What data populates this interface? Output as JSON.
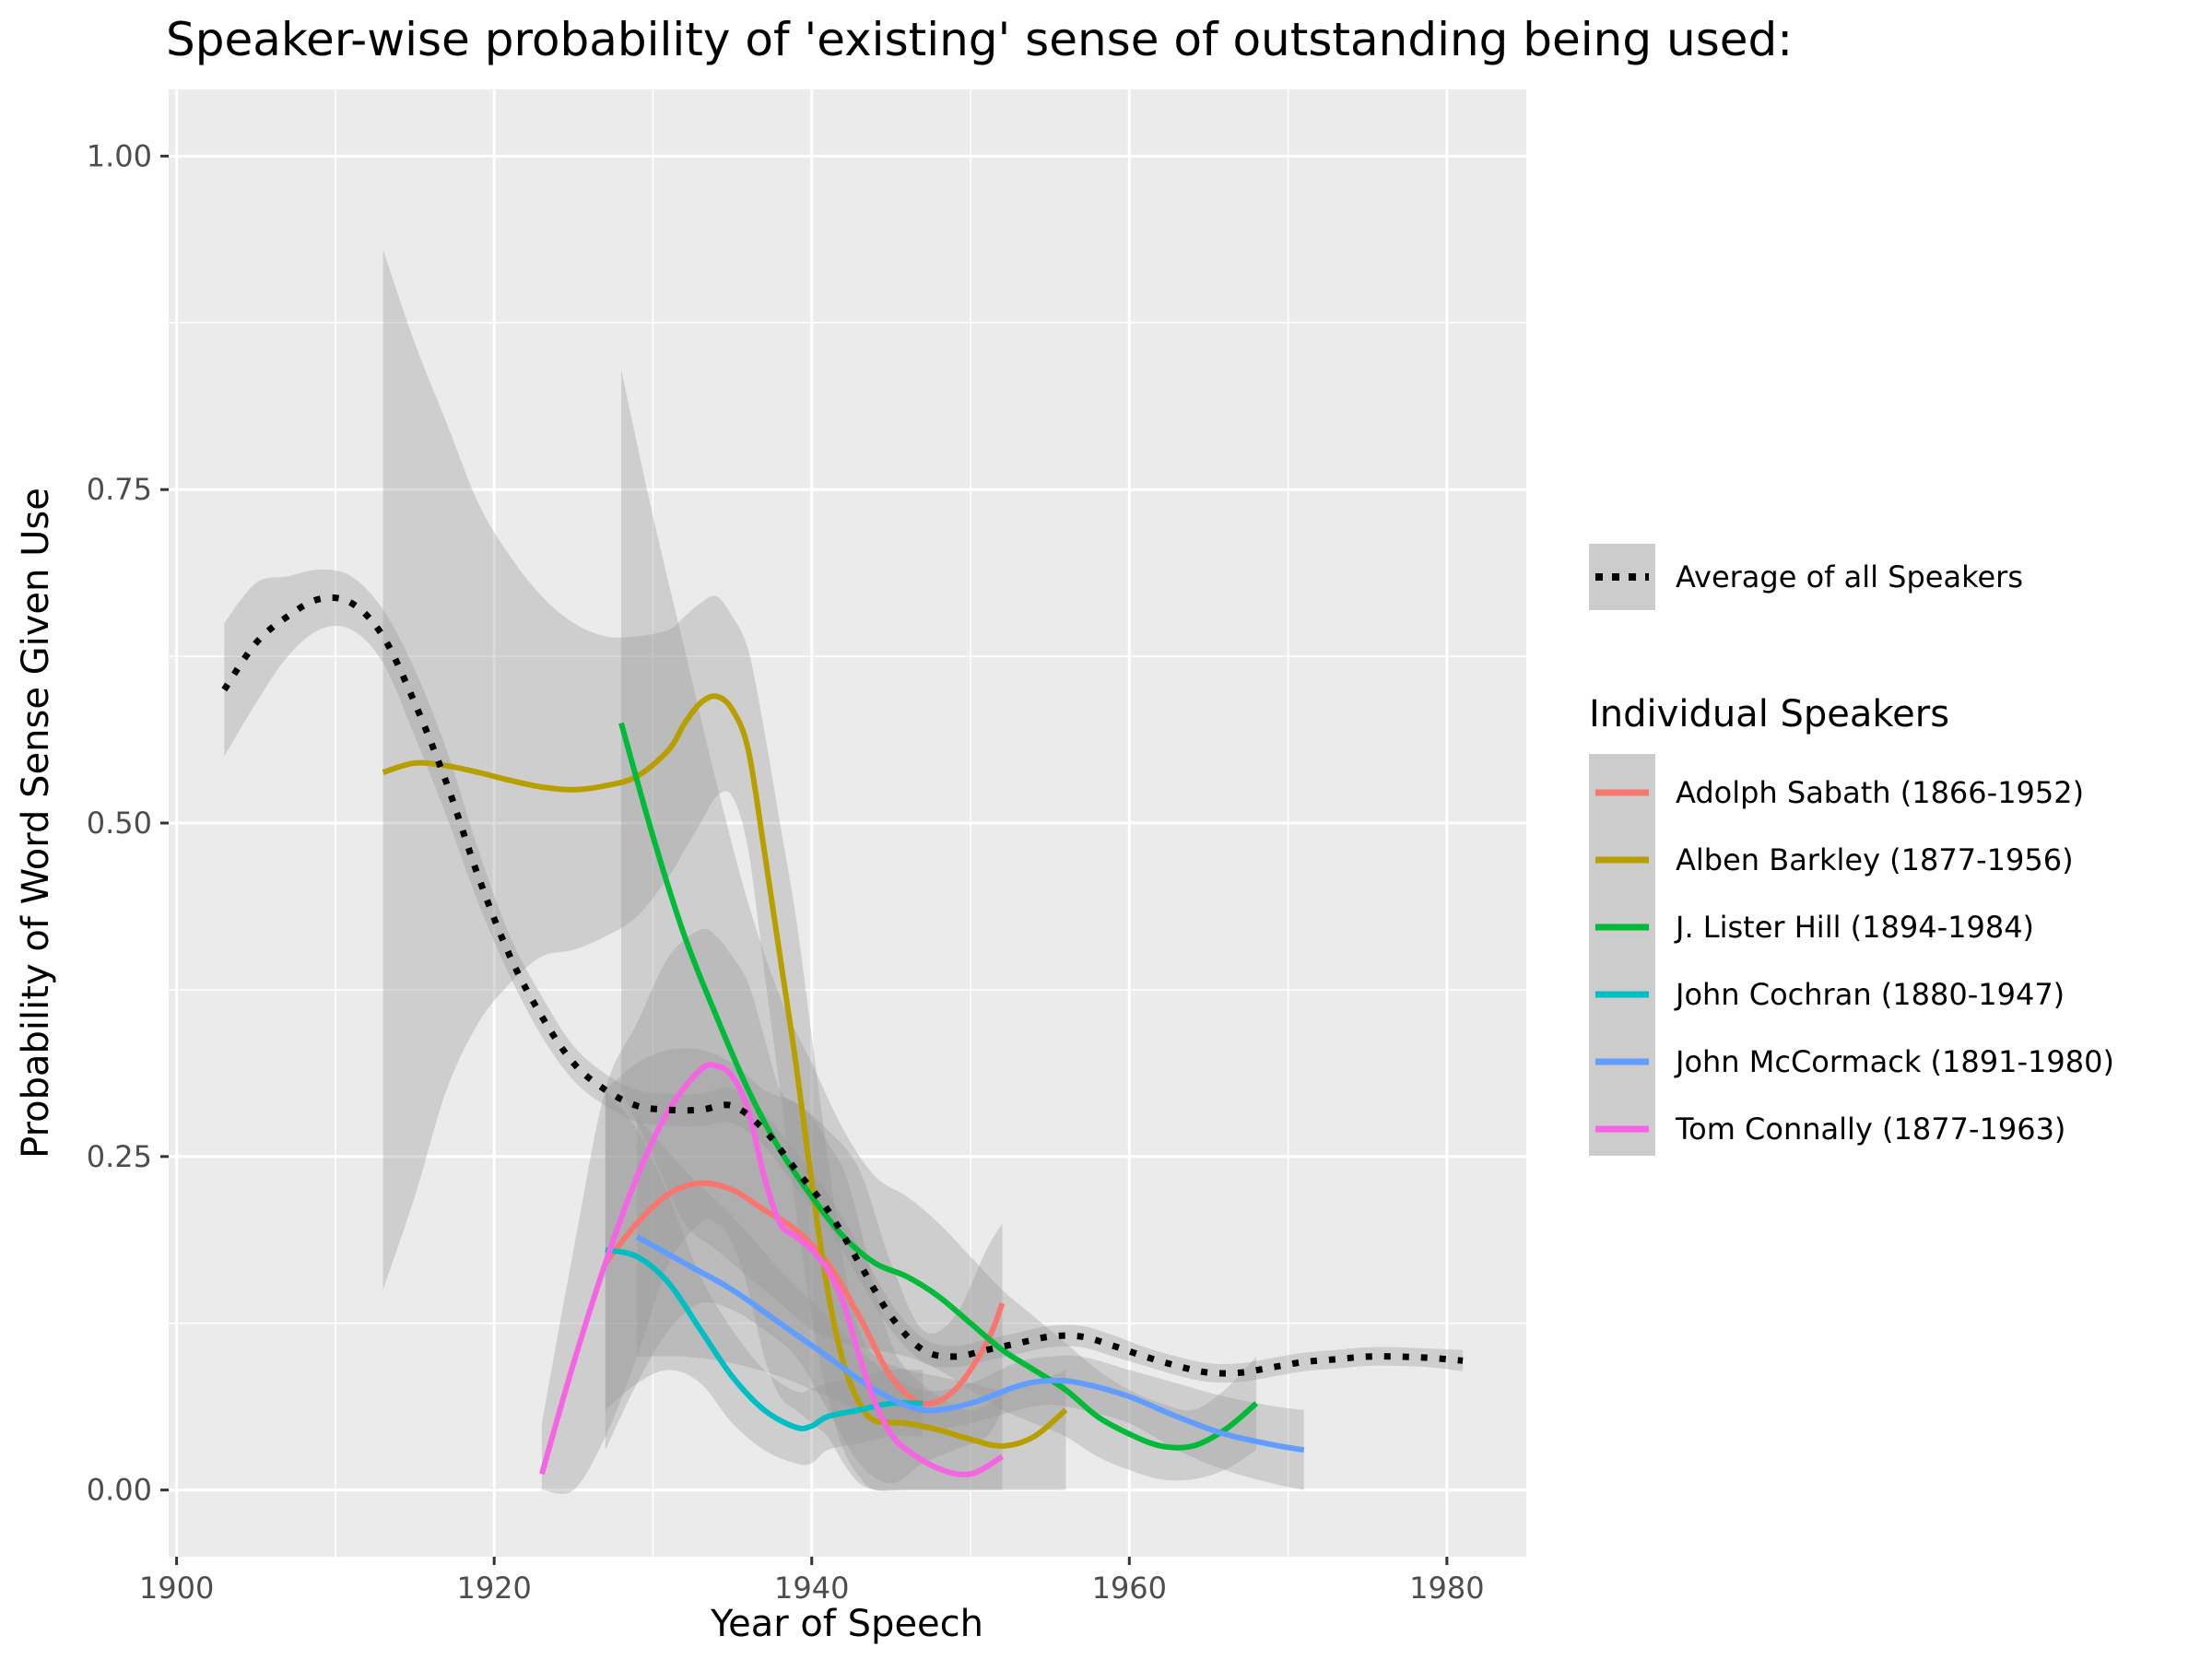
{
  "chart_data": {
    "type": "line",
    "title": "Speaker-wise probability of 'existing' sense of outstanding being used:",
    "xlabel": "Year of Speech",
    "ylabel": "Probability of Word Sense Given Use",
    "xlim": [
      1899.5,
      1985
    ],
    "ylim": [
      -0.05,
      1.05
    ],
    "x_ticks": [
      1900,
      1920,
      1940,
      1960,
      1980
    ],
    "x_tick_labels": [
      "1900",
      "1920",
      "1940",
      "1960",
      "1980"
    ],
    "y_ticks": [
      0,
      0.25,
      0.5,
      0.75,
      1.0
    ],
    "y_tick_labels": [
      "0.00",
      "0.25",
      "0.50",
      "0.75",
      "1.00"
    ],
    "grid": true,
    "legend_position": "right",
    "average": {
      "name": "Average of all Speakers",
      "color": "#000000",
      "x": [
        1903,
        1905,
        1907,
        1909,
        1911,
        1913,
        1915,
        1917,
        1919,
        1921,
        1923,
        1925,
        1927,
        1929,
        1931,
        1933,
        1935,
        1937,
        1939,
        1941,
        1943,
        1945,
        1947,
        1949,
        1951,
        1953,
        1955,
        1957,
        1959,
        1961,
        1963,
        1965,
        1967,
        1969,
        1971,
        1973,
        1975,
        1977,
        1979,
        1981
      ],
      "y": [
        0.6,
        0.635,
        0.655,
        0.668,
        0.665,
        0.64,
        0.59,
        0.53,
        0.46,
        0.4,
        0.355,
        0.32,
        0.3,
        0.288,
        0.285,
        0.285,
        0.288,
        0.27,
        0.24,
        0.21,
        0.17,
        0.13,
        0.105,
        0.1,
        0.105,
        0.11,
        0.115,
        0.115,
        0.108,
        0.1,
        0.093,
        0.088,
        0.088,
        0.092,
        0.096,
        0.098,
        0.1,
        0.1,
        0.099,
        0.097
      ],
      "band_low": [
        0.55,
        0.59,
        0.625,
        0.645,
        0.645,
        0.62,
        0.565,
        0.505,
        0.44,
        0.385,
        0.34,
        0.307,
        0.288,
        0.276,
        0.273,
        0.273,
        0.275,
        0.258,
        0.227,
        0.198,
        0.158,
        0.12,
        0.096,
        0.092,
        0.097,
        0.102,
        0.107,
        0.107,
        0.1,
        0.093,
        0.086,
        0.081,
        0.081,
        0.085,
        0.089,
        0.091,
        0.093,
        0.093,
        0.092,
        0.089
      ],
      "band_high": [
        0.65,
        0.68,
        0.685,
        0.69,
        0.685,
        0.66,
        0.615,
        0.555,
        0.48,
        0.415,
        0.37,
        0.333,
        0.312,
        0.3,
        0.297,
        0.297,
        0.301,
        0.282,
        0.253,
        0.222,
        0.182,
        0.14,
        0.114,
        0.108,
        0.113,
        0.118,
        0.123,
        0.123,
        0.116,
        0.107,
        0.1,
        0.095,
        0.095,
        0.099,
        0.103,
        0.105,
        0.107,
        0.107,
        0.106,
        0.105
      ]
    },
    "legend_title": "Individual Speakers",
    "series": [
      {
        "name": "Adolph Sabath (1866-1952)",
        "color": "#F8766D",
        "x": [
          1927,
          1929,
          1931,
          1933,
          1935,
          1937,
          1939,
          1941,
          1943,
          1945,
          1947,
          1949,
          1951,
          1952
        ],
        "y": [
          0.17,
          0.2,
          0.222,
          0.23,
          0.225,
          0.21,
          0.195,
          0.17,
          0.13,
          0.085,
          0.065,
          0.075,
          0.11,
          0.14
        ],
        "band_low": [
          0.03,
          0.08,
          0.12,
          0.14,
          0.135,
          0.12,
          0.1,
          0.06,
          0.02,
          0.005,
          0.02,
          0.03,
          0.04,
          0.06
        ],
        "band_high": [
          0.3,
          0.32,
          0.33,
          0.33,
          0.32,
          0.3,
          0.29,
          0.27,
          0.24,
          0.17,
          0.12,
          0.13,
          0.18,
          0.2
        ]
      },
      {
        "name": "Alben Barkley (1877-1956)",
        "color": "#B79F00",
        "x": [
          1913,
          1915,
          1917,
          1919,
          1921,
          1923,
          1925,
          1927,
          1929,
          1931,
          1932,
          1933,
          1934,
          1935,
          1936,
          1937,
          1938,
          1939,
          1940,
          1941,
          1942,
          1943,
          1944,
          1946,
          1948,
          1950,
          1952,
          1954,
          1956
        ],
        "y": [
          0.538,
          0.545,
          0.543,
          0.538,
          0.532,
          0.527,
          0.525,
          0.528,
          0.535,
          0.555,
          0.575,
          0.59,
          0.595,
          0.585,
          0.555,
          0.48,
          0.4,
          0.32,
          0.23,
          0.15,
          0.095,
          0.065,
          0.052,
          0.05,
          0.045,
          0.038,
          0.033,
          0.04,
          0.06
        ],
        "band_low": [
          0.15,
          0.22,
          0.3,
          0.35,
          0.38,
          0.4,
          0.405,
          0.415,
          0.43,
          0.46,
          0.48,
          0.5,
          0.52,
          0.52,
          0.48,
          0.39,
          0.3,
          0.21,
          0.13,
          0.07,
          0.03,
          0.01,
          0.0,
          0.0,
          0.0,
          0.0,
          0.0,
          0.0,
          0.0
        ],
        "band_high": [
          0.93,
          0.86,
          0.8,
          0.74,
          0.7,
          0.67,
          0.65,
          0.64,
          0.64,
          0.645,
          0.655,
          0.665,
          0.67,
          0.655,
          0.63,
          0.57,
          0.5,
          0.43,
          0.34,
          0.25,
          0.17,
          0.12,
          0.1,
          0.09,
          0.085,
          0.08,
          0.075,
          0.08,
          0.09
        ]
      },
      {
        "name": "J. Lister Hill (1894-1984)",
        "color": "#00BA38",
        "x": [
          1928,
          1930,
          1932,
          1934,
          1936,
          1938,
          1940,
          1942,
          1944,
          1946,
          1948,
          1950,
          1952,
          1954,
          1956,
          1958,
          1960,
          1962,
          1964,
          1966,
          1968
        ],
        "y": [
          0.575,
          0.49,
          0.415,
          0.355,
          0.3,
          0.255,
          0.22,
          0.19,
          0.17,
          0.16,
          0.145,
          0.125,
          0.105,
          0.09,
          0.075,
          0.055,
          0.042,
          0.033,
          0.033,
          0.045,
          0.065
        ],
        "band_low": [
          0.3,
          0.25,
          0.2,
          0.18,
          0.16,
          0.14,
          0.12,
          0.11,
          0.105,
          0.1,
          0.09,
          0.075,
          0.06,
          0.05,
          0.04,
          0.025,
          0.015,
          0.008,
          0.008,
          0.015,
          0.03
        ],
        "band_high": [
          0.84,
          0.73,
          0.63,
          0.53,
          0.44,
          0.37,
          0.32,
          0.27,
          0.235,
          0.22,
          0.2,
          0.175,
          0.15,
          0.13,
          0.11,
          0.09,
          0.075,
          0.065,
          0.06,
          0.075,
          0.1
        ]
      },
      {
        "name": "John Cochran (1880-1947)",
        "color": "#00BFC4",
        "x": [
          1927,
          1929,
          1931,
          1933,
          1935,
          1937,
          1939,
          1940,
          1941,
          1943,
          1945,
          1947
        ],
        "y": [
          0.18,
          0.175,
          0.155,
          0.12,
          0.085,
          0.06,
          0.047,
          0.048,
          0.055,
          0.06,
          0.065,
          0.065
        ],
        "band_low": [
          0.06,
          0.08,
          0.09,
          0.08,
          0.05,
          0.03,
          0.02,
          0.02,
          0.03,
          0.035,
          0.04,
          0.04
        ],
        "band_high": [
          0.3,
          0.27,
          0.22,
          0.16,
          0.12,
          0.09,
          0.074,
          0.076,
          0.08,
          0.085,
          0.09,
          0.09
        ]
      },
      {
        "name": "John McCormack (1891-1980)",
        "color": "#619CFF",
        "x": [
          1929,
          1932,
          1935,
          1938,
          1941,
          1944,
          1947,
          1950,
          1953,
          1955,
          1957,
          1960,
          1963,
          1966,
          1969,
          1971
        ],
        "y": [
          0.19,
          0.17,
          0.15,
          0.125,
          0.1,
          0.075,
          0.06,
          0.065,
          0.078,
          0.082,
          0.08,
          0.07,
          0.055,
          0.042,
          0.034,
          0.03
        ],
        "band_low": [
          0.1,
          0.1,
          0.095,
          0.085,
          0.07,
          0.055,
          0.045,
          0.05,
          0.06,
          0.064,
          0.06,
          0.05,
          0.03,
          0.015,
          0.005,
          0.0
        ],
        "band_high": [
          0.28,
          0.24,
          0.205,
          0.165,
          0.13,
          0.095,
          0.075,
          0.08,
          0.096,
          0.1,
          0.1,
          0.09,
          0.08,
          0.07,
          0.063,
          0.06
        ]
      },
      {
        "name": "Tom Connally (1877-1963)",
        "color": "#F564E3",
        "x": [
          1923,
          1925,
          1927,
          1929,
          1931,
          1933,
          1934,
          1935,
          1936,
          1937,
          1938,
          1939,
          1940,
          1941,
          1942,
          1943,
          1944,
          1945,
          1946,
          1948,
          1950,
          1952
        ],
        "y": [
          0.012,
          0.095,
          0.17,
          0.235,
          0.285,
          0.315,
          0.318,
          0.31,
          0.285,
          0.235,
          0.2,
          0.19,
          0.18,
          0.165,
          0.14,
          0.1,
          0.065,
          0.042,
          0.03,
          0.016,
          0.012,
          0.025
        ],
        "band_low": [
          0.0,
          0.0,
          0.04,
          0.1,
          0.17,
          0.2,
          0.2,
          0.185,
          0.15,
          0.1,
          0.07,
          0.06,
          0.05,
          0.04,
          0.02,
          0.005,
          0.0,
          0.0,
          0.0,
          0.0,
          0.0,
          0.0
        ],
        "band_high": [
          0.05,
          0.18,
          0.3,
          0.35,
          0.4,
          0.42,
          0.415,
          0.4,
          0.38,
          0.34,
          0.3,
          0.29,
          0.28,
          0.26,
          0.24,
          0.2,
          0.15,
          0.11,
          0.09,
          0.07,
          0.06,
          0.07
        ]
      }
    ]
  }
}
